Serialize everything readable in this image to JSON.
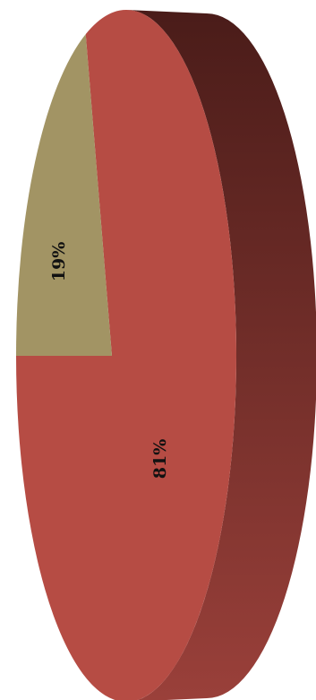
{
  "chart_data": {
    "type": "pie",
    "style": "3d-rotated",
    "categories": [
      "",
      ""
    ],
    "values": [
      19,
      81
    ],
    "labels": [
      "19%",
      "81%"
    ],
    "colors": {
      "slice_small": "#a29464",
      "slice_large": "#b64c44",
      "side_light": "#9a403a",
      "side_dark": "#4a1c19"
    }
  }
}
